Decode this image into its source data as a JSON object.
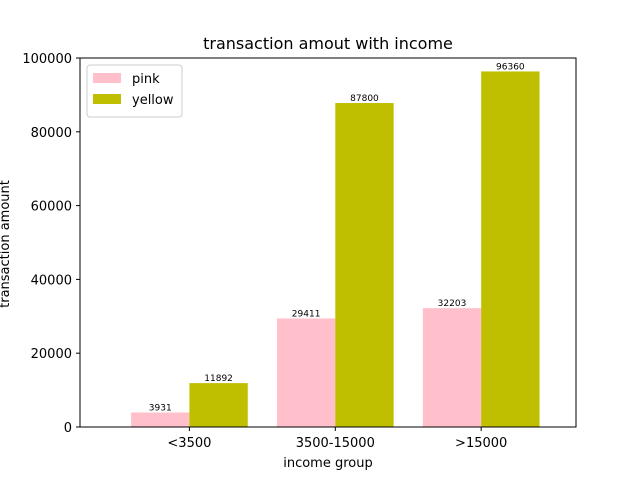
{
  "chart_data": {
    "type": "bar",
    "title": "transaction amout with income",
    "xlabel": "income group",
    "ylabel": "transaction amount",
    "categories": [
      "<3500",
      "3500-15000",
      ">15000"
    ],
    "series": [
      {
        "name": "pink",
        "color": "#ffc0cb",
        "values": [
          3931,
          29411,
          32203
        ]
      },
      {
        "name": "yellow",
        "color": "#bfbf00",
        "values": [
          11892,
          87800,
          96360
        ]
      }
    ],
    "ylim": [
      0,
      100000
    ],
    "yticks": [
      0,
      20000,
      40000,
      60000,
      80000,
      100000
    ],
    "grid": false,
    "legend_position": "top-left"
  }
}
